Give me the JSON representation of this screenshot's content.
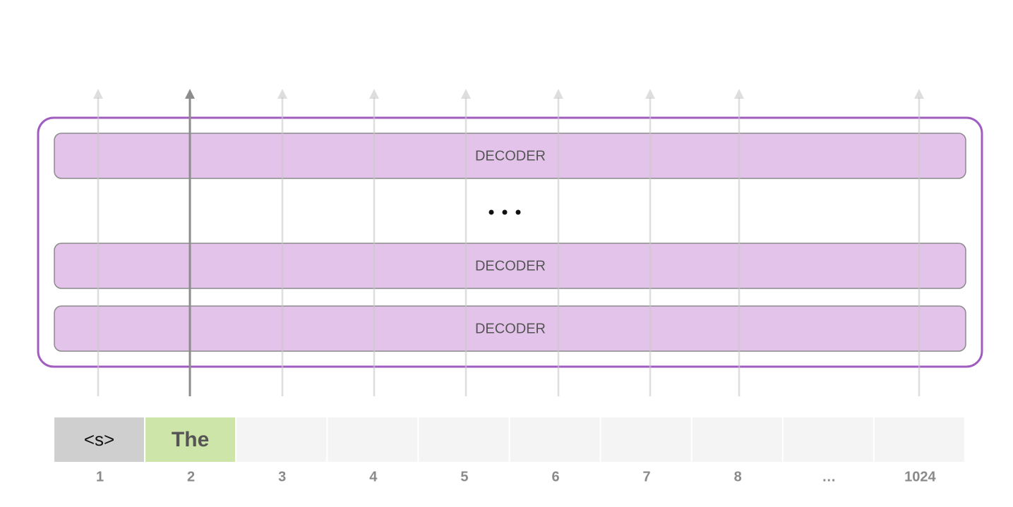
{
  "decoders": [
    "DECODER",
    "DECODER",
    "DECODER"
  ],
  "tokens": [
    "<s>",
    "The"
  ],
  "positions": [
    "1",
    "2",
    "3",
    "4",
    "5",
    "6",
    "7",
    "8",
    "…",
    "1024"
  ]
}
